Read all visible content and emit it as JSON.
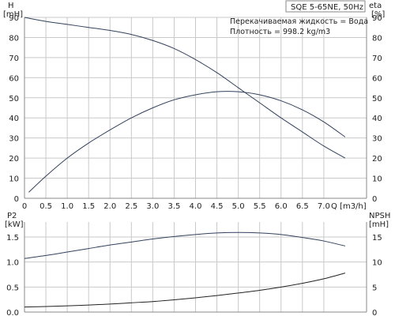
{
  "chart_data": [
    {
      "type": "line",
      "title": "SQE 5-65NE, 50Hz",
      "annotations": [
        "Перекачиваемая жидкость = Вода",
        "Плотность = 998.2 kg/m3"
      ],
      "xlabel": "Q [m3/h]",
      "ylabel_left": "H\n[mH]",
      "ylabel_right": "eta\n[%]",
      "xlim": [
        0,
        8.0
      ],
      "xticks": [
        "0",
        "0.5",
        "1.0",
        "1.5",
        "2.0",
        "2.5",
        "3.0",
        "3.5",
        "4.0",
        "4.5",
        "5.0",
        "5.5",
        "6.0",
        "6.5",
        "7.0"
      ],
      "ylim_left": [
        0,
        90
      ],
      "yticks_left": [
        "0",
        "10",
        "20",
        "30",
        "40",
        "50",
        "60",
        "70",
        "80",
        "90"
      ],
      "ylim_right": [
        0,
        90
      ],
      "yticks_right": [
        "0",
        "10",
        "20",
        "30",
        "40",
        "50",
        "60",
        "70",
        "80",
        "90"
      ],
      "grid": true,
      "series": [
        {
          "name": "H",
          "axis": "left",
          "color": "#33415c",
          "x": [
            0,
            0.5,
            1.0,
            1.5,
            2.0,
            2.5,
            3.0,
            3.5,
            4.0,
            4.5,
            5.0,
            5.5,
            6.0,
            6.5,
            7.0,
            7.5
          ],
          "values": [
            90,
            88,
            86.5,
            85,
            83.5,
            81.5,
            78.5,
            74.5,
            69,
            62.5,
            55,
            47.5,
            40,
            33,
            26,
            20
          ]
        },
        {
          "name": "eta",
          "axis": "right",
          "color": "#33415c",
          "x": [
            0.1,
            0.5,
            1.0,
            1.5,
            2.0,
            2.5,
            3.0,
            3.5,
            4.0,
            4.5,
            5.0,
            5.5,
            6.0,
            6.5,
            7.0,
            7.5
          ],
          "values": [
            3,
            11,
            20,
            27.5,
            34,
            40,
            45,
            49,
            51.5,
            53,
            53,
            51.5,
            48.5,
            44,
            38,
            30.5
          ]
        }
      ]
    },
    {
      "type": "line",
      "ylabel_left": "P2\n[kW]",
      "ylabel_right": "NPSH\n[mH]",
      "xlim": [
        0,
        8.0
      ],
      "ylim_left": [
        0,
        1.8
      ],
      "yticks_left": [
        "0.0",
        "0.5",
        "1.0",
        "1.5"
      ],
      "ylim_right": [
        0,
        18
      ],
      "yticks_right": [
        "0",
        "5",
        "10",
        "15"
      ],
      "grid": true,
      "series": [
        {
          "name": "P2",
          "axis": "left",
          "color": "#33415c",
          "x": [
            0,
            0.5,
            1.0,
            1.5,
            2.0,
            2.5,
            3.0,
            3.5,
            4.0,
            4.5,
            5.0,
            5.5,
            6.0,
            6.5,
            7.0,
            7.5
          ],
          "values": [
            1.07,
            1.13,
            1.2,
            1.27,
            1.34,
            1.4,
            1.46,
            1.51,
            1.55,
            1.58,
            1.59,
            1.58,
            1.55,
            1.49,
            1.42,
            1.32
          ]
        },
        {
          "name": "NPSH",
          "axis": "right",
          "color": "#222222",
          "x": [
            0,
            0.5,
            1.0,
            1.5,
            2.0,
            2.5,
            3.0,
            3.5,
            4.0,
            4.5,
            5.0,
            5.5,
            6.0,
            6.5,
            7.0,
            7.5
          ],
          "values": [
            1.0,
            1.1,
            1.25,
            1.4,
            1.6,
            1.85,
            2.1,
            2.45,
            2.85,
            3.3,
            3.8,
            4.35,
            5.0,
            5.75,
            6.65,
            7.8
          ]
        }
      ]
    }
  ]
}
